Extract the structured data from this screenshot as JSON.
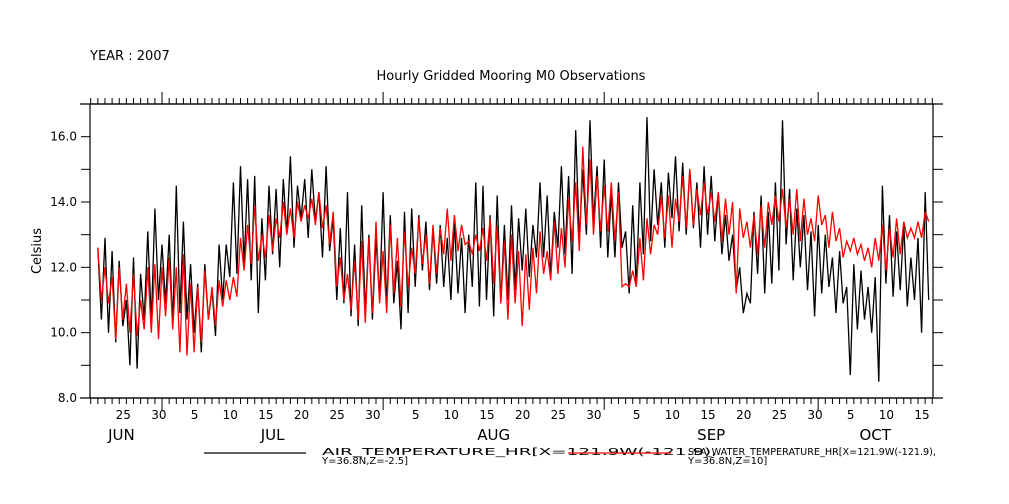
{
  "chart_data": {
    "type": "line",
    "year_label": "YEAR : 2007",
    "title": "Hourly Gridded Mooring M0 Observations",
    "xlabel": "",
    "ylabel": "Celsius",
    "ylim": [
      8.0,
      17.0
    ],
    "y_ticks": [
      "8.0",
      "10.0",
      "12.0",
      "14.0",
      "16.0"
    ],
    "y_tick_values": [
      8,
      10,
      12,
      14,
      16
    ],
    "x_units": "days since 2007-06-21 00:00",
    "xlim": [
      -0.1,
      118.1
    ],
    "x_ticks": [
      {
        "day": 4,
        "label": "25"
      },
      {
        "day": 9,
        "label": "30"
      },
      {
        "day": 14,
        "label": "5"
      },
      {
        "day": 19,
        "label": "10"
      },
      {
        "day": 24,
        "label": "15"
      },
      {
        "day": 29,
        "label": "20"
      },
      {
        "day": 34,
        "label": "25"
      },
      {
        "day": 39,
        "label": "30"
      },
      {
        "day": 45,
        "label": "5"
      },
      {
        "day": 50,
        "label": "10"
      },
      {
        "day": 55,
        "label": "15"
      },
      {
        "day": 60,
        "label": "20"
      },
      {
        "day": 65,
        "label": "25"
      },
      {
        "day": 70,
        "label": "30"
      },
      {
        "day": 76,
        "label": "5"
      },
      {
        "day": 81,
        "label": "10"
      },
      {
        "day": 86,
        "label": "15"
      },
      {
        "day": 91,
        "label": "20"
      },
      {
        "day": 96,
        "label": "25"
      },
      {
        "day": 101,
        "label": "30"
      },
      {
        "day": 106,
        "label": "5"
      },
      {
        "day": 111,
        "label": "10"
      },
      {
        "day": 116,
        "label": "15"
      }
    ],
    "month_starts": [
      10,
      41,
      72,
      102
    ],
    "month_labels": [
      {
        "day": 4.3,
        "label": "JUN"
      },
      {
        "day": 25.5,
        "label": "JUL"
      },
      {
        "day": 56.5,
        "label": "AUG"
      },
      {
        "day": 87,
        "label": "SEP"
      },
      {
        "day": 110,
        "label": "OCT"
      }
    ],
    "series_start_day": 1.0,
    "step_hours": 12,
    "series": [
      {
        "name": "AIR_TEMPERATURE_HR[X=121.9W(-121.9),",
        "name_line2": "Y=36.8N,Z=-2.5]",
        "color": "#000000",
        "values": [
          12.6,
          10.4,
          12.9,
          10.0,
          12.5,
          9.7,
          12.2,
          10.2,
          11.0,
          9.0,
          12.3,
          8.9,
          11.8,
          10.4,
          13.1,
          10.3,
          13.8,
          11.0,
          12.7,
          10.9,
          13.0,
          10.2,
          14.5,
          10.6,
          13.4,
          10.4,
          12.1,
          10.0,
          11.5,
          9.4,
          12.1,
          10.4,
          11.3,
          9.9,
          12.7,
          11.0,
          12.7,
          11.7,
          14.6,
          11.8,
          15.1,
          12.1,
          14.7,
          11.6,
          14.8,
          10.6,
          13.5,
          11.6,
          14.5,
          12.4,
          14.4,
          12.0,
          14.7,
          13.0,
          15.4,
          12.6,
          14.5,
          13.5,
          14.7,
          12.9,
          15.0,
          13.4,
          14.3,
          12.3,
          15.1,
          12.5,
          13.5,
          11.0,
          13.2,
          10.9,
          14.3,
          10.5,
          12.7,
          10.2,
          13.9,
          10.6,
          13.0,
          10.4,
          12.9,
          11.0,
          14.3,
          10.8,
          13.6,
          10.9,
          12.2,
          10.1,
          13.7,
          10.6,
          13.8,
          11.4,
          13.6,
          11.9,
          13.4,
          11.3,
          13.2,
          11.5,
          13.3,
          11.4,
          12.9,
          11.0,
          13.4,
          11.2,
          12.9,
          10.6,
          13.0,
          11.4,
          14.6,
          10.8,
          14.5,
          11.0,
          13.6,
          10.5,
          14.2,
          10.9,
          13.3,
          11.0,
          13.9,
          11.3,
          13.5,
          11.9,
          13.8,
          11.7,
          13.3,
          12.3,
          14.6,
          12.3,
          14.2,
          11.7,
          13.7,
          12.6,
          15.1,
          12.4,
          14.8,
          11.8,
          16.2,
          12.8,
          15.0,
          13.0,
          16.5,
          13.4,
          15.1,
          12.6,
          15.3,
          12.3,
          14.3,
          12.3,
          14.6,
          12.6,
          13.1,
          11.2,
          13.9,
          11.4,
          14.6,
          12.4,
          16.6,
          12.8,
          15.0,
          13.3,
          14.6,
          12.6,
          14.9,
          13.5,
          15.4,
          13.1,
          15.2,
          13.0,
          15.0,
          13.2,
          14.6,
          12.6,
          15.1,
          13.0,
          14.8,
          12.8,
          14.3,
          12.4,
          13.6,
          12.2,
          13.0,
          11.3,
          12.0,
          10.6,
          11.2,
          10.9,
          13.7,
          11.8,
          14.2,
          11.2,
          13.7,
          11.5,
          14.6,
          11.9,
          16.5,
          12.7,
          14.4,
          11.6,
          13.8,
          12.0,
          13.6,
          11.3,
          13.1,
          10.5,
          13.3,
          11.2,
          13.0,
          11.4,
          12.3,
          10.6,
          12.5,
          10.9,
          11.4,
          8.7,
          12.1,
          10.1,
          11.9,
          10.4,
          11.4,
          10.0,
          11.7,
          8.5,
          14.5,
          11.5,
          13.6,
          11.1,
          13.1,
          11.3,
          13.3,
          10.8,
          12.3,
          11.0,
          12.9,
          10.0,
          14.3,
          11.0
        ]
      },
      {
        "name": "SEA_WATER_TEMPERATURE_HR[X=121.9W(-121.9),",
        "name_line2": "Y=36.8N,Z=10]",
        "color": "#ff0000",
        "values": [
          12.6,
          11.0,
          12.0,
          10.9,
          11.7,
          9.8,
          12.0,
          10.4,
          11.5,
          10.0,
          11.8,
          9.9,
          11.0,
          10.1,
          12.0,
          10.0,
          12.1,
          9.8,
          12.0,
          10.5,
          12.3,
          10.1,
          12.0,
          9.4,
          12.4,
          9.3,
          11.5,
          9.4,
          11.4,
          9.7,
          11.9,
          10.4,
          11.4,
          10.2,
          11.6,
          10.8,
          11.6,
          11.0,
          11.7,
          11.1,
          12.9,
          11.9,
          13.3,
          12.1,
          13.9,
          12.2,
          13.0,
          12.3,
          13.6,
          12.5,
          13.5,
          12.9,
          14.0,
          13.0,
          13.8,
          12.9,
          14.0,
          13.4,
          13.9,
          13.5,
          14.1,
          13.3,
          14.3,
          13.2,
          13.9,
          12.7,
          13.7,
          11.4,
          12.3,
          11.0,
          11.8,
          10.7,
          12.2,
          10.4,
          12.8,
          10.3,
          12.9,
          10.6,
          13.4,
          10.9,
          12.5,
          10.6,
          13.3,
          11.2,
          12.9,
          10.8,
          13.1,
          11.4,
          12.6,
          11.8,
          13.5,
          12.1,
          13.0,
          11.5,
          13.3,
          11.8,
          13.2,
          12.4,
          13.8,
          12.2,
          13.6,
          12.5,
          13.3,
          12.7,
          12.8,
          12.4,
          13.0,
          12.5,
          13.2,
          12.2,
          13.5,
          11.5,
          13.3,
          10.9,
          12.8,
          10.4,
          13.0,
          10.9,
          12.5,
          10.2,
          12.4,
          10.7,
          12.6,
          11.2,
          13.1,
          11.8,
          12.5,
          11.6,
          13.4,
          11.8,
          13.2,
          12.0,
          14.1,
          12.8,
          14.6,
          12.5,
          15.7,
          13.3,
          15.3,
          13.0,
          14.8,
          13.1,
          14.5,
          13.1,
          14.6,
          12.8,
          14.3,
          11.4,
          11.5,
          11.4,
          11.9,
          11.4,
          12.9,
          11.6,
          13.5,
          12.4,
          13.3,
          13.0,
          14.2,
          12.9,
          14.2,
          12.6,
          14.1,
          13.4,
          14.8,
          13.2,
          15.0,
          13.3,
          14.4,
          13.6,
          14.6,
          13.6,
          14.3,
          13.4,
          14.3,
          12.8,
          14.1,
          13.0,
          14.0,
          11.2,
          13.8,
          12.9,
          13.4,
          12.6,
          13.6,
          12.4,
          13.9,
          12.6,
          14.0,
          13.3,
          14.2,
          13.4,
          14.4,
          13.2,
          14.1,
          13.0,
          14.4,
          12.8,
          14.1,
          13.0,
          13.5,
          12.8,
          14.2,
          13.3,
          13.6,
          12.6,
          13.7,
          12.8,
          13.2,
          12.3,
          12.8,
          12.5,
          12.9,
          12.4,
          12.7,
          12.2,
          12.6,
          12.0,
          12.9,
          12.2,
          13.3,
          11.9,
          13.2,
          12.3,
          13.5,
          12.4,
          13.4,
          12.9,
          13.2,
          12.9,
          13.4,
          12.9,
          13.7,
          13.4
        ]
      }
    ]
  }
}
